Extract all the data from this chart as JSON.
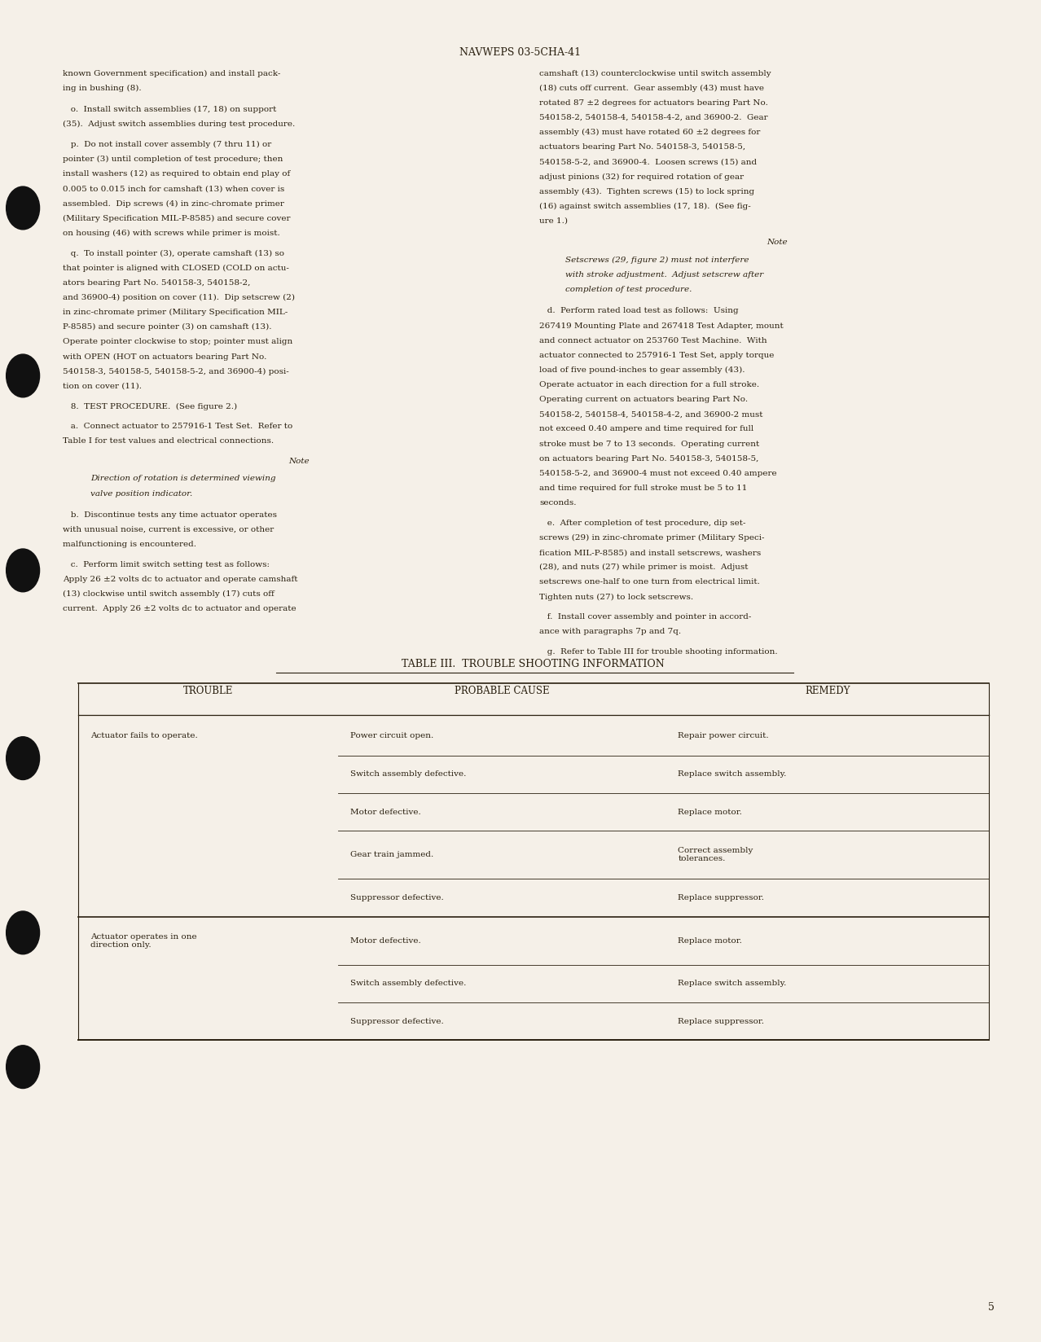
{
  "page_bg": "#f5f0e8",
  "text_color": "#2a2010",
  "header_text": "NAVWEPS 03-5CHA-41",
  "page_number": "5",
  "table_title": "TABLE III.  TROUBLE SHOOTING INFORMATION",
  "table_headers": [
    "TROUBLE",
    "PROBABLE CAUSE",
    "REMEDY"
  ],
  "table_rows": [
    [
      "Actuator fails to operate.",
      "Power circuit open.",
      "Repair power circuit.",
      0.03,
      true
    ],
    [
      "",
      "Switch assembly defective.",
      "Replace switch assembly.",
      0.028,
      false
    ],
    [
      "",
      "Motor defective.",
      "Replace motor.",
      0.028,
      false
    ],
    [
      "",
      "Gear train jammed.",
      "Correct assembly\ntolerances.",
      0.036,
      false
    ],
    [
      "",
      "Suppressor defective.",
      "Replace suppressor.",
      0.028,
      false
    ],
    [
      "Actuator operates in one\ndirection only.",
      "Motor defective.",
      "Replace motor.",
      0.036,
      true
    ],
    [
      "",
      "Switch assembly defective.",
      "Replace switch assembly.",
      0.028,
      false
    ],
    [
      "",
      "Suppressor defective.",
      "Replace suppressor.",
      0.028,
      false
    ]
  ]
}
